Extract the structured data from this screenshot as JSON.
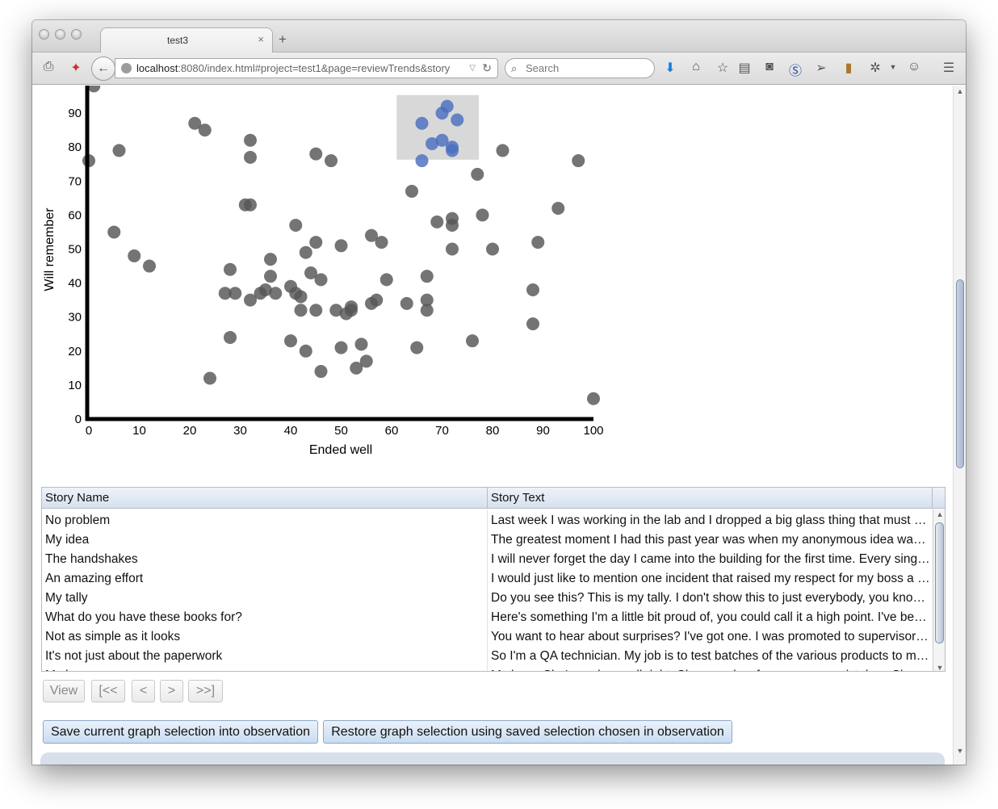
{
  "browser": {
    "tab_title": "test3",
    "tab_close": "×",
    "new_tab": "+",
    "url_host": "localhost",
    "url_rest": ":8080/index.html#project=test1&page=reviewTrends&story",
    "search_placeholder": "Search"
  },
  "chart_data": {
    "type": "scatter",
    "xlabel": "Ended well",
    "ylabel": "Will remember",
    "xlim": [
      0,
      100
    ],
    "ylim": [
      0,
      100
    ],
    "xticks": [
      0,
      10,
      20,
      30,
      40,
      50,
      60,
      70,
      80,
      90,
      100
    ],
    "yticks": [
      0,
      10,
      20,
      30,
      40,
      50,
      60,
      70,
      80,
      90
    ],
    "selection_box": {
      "x": [
        61,
        77.3
      ],
      "y": [
        76.3,
        95.3
      ]
    },
    "colors": {
      "point": "#555555",
      "selected": "#4a6fc0",
      "selection": "#d8d8d8"
    },
    "points": [
      [
        1,
        98
      ],
      [
        0,
        76
      ],
      [
        6,
        79
      ],
      [
        5,
        55
      ],
      [
        9,
        48
      ],
      [
        12,
        45
      ],
      [
        21,
        87
      ],
      [
        23,
        85
      ],
      [
        24,
        12
      ],
      [
        27,
        37
      ],
      [
        28,
        44
      ],
      [
        28,
        24
      ],
      [
        29,
        37
      ],
      [
        31,
        63
      ],
      [
        32,
        63
      ],
      [
        32,
        82
      ],
      [
        32,
        77
      ],
      [
        32,
        35
      ],
      [
        34,
        37
      ],
      [
        35,
        38
      ],
      [
        36,
        47
      ],
      [
        36,
        42
      ],
      [
        37,
        37
      ],
      [
        40,
        39
      ],
      [
        40,
        23
      ],
      [
        41,
        57
      ],
      [
        41,
        37
      ],
      [
        42,
        36
      ],
      [
        42,
        32
      ],
      [
        43,
        49
      ],
      [
        43,
        20
      ],
      [
        44,
        43
      ],
      [
        45,
        78
      ],
      [
        45,
        52
      ],
      [
        45,
        32
      ],
      [
        46,
        41
      ],
      [
        46,
        14
      ],
      [
        48,
        76
      ],
      [
        49,
        32
      ],
      [
        50,
        51
      ],
      [
        50,
        21
      ],
      [
        51,
        31
      ],
      [
        52,
        32
      ],
      [
        52,
        33
      ],
      [
        53,
        15
      ],
      [
        54,
        22
      ],
      [
        55,
        17
      ],
      [
        56,
        54
      ],
      [
        56,
        34
      ],
      [
        57,
        35
      ],
      [
        58,
        52
      ],
      [
        59,
        41
      ],
      [
        63,
        34
      ],
      [
        64,
        67
      ],
      [
        65,
        21
      ],
      [
        67,
        42
      ],
      [
        67,
        35
      ],
      [
        67,
        32
      ],
      [
        69,
        58
      ],
      [
        72,
        59
      ],
      [
        72,
        57
      ],
      [
        72,
        50
      ],
      [
        76,
        23
      ],
      [
        77,
        72
      ],
      [
        78,
        60
      ],
      [
        80,
        50
      ],
      [
        82,
        79
      ],
      [
        88,
        38
      ],
      [
        88,
        28
      ],
      [
        89,
        52
      ],
      [
        93,
        62
      ],
      [
        97,
        76
      ],
      [
        100,
        6
      ]
    ],
    "selected_points": [
      [
        66,
        87
      ],
      [
        66,
        76
      ],
      [
        68,
        81
      ],
      [
        70,
        90
      ],
      [
        70,
        82
      ],
      [
        71,
        92
      ],
      [
        72,
        80
      ],
      [
        72,
        79
      ],
      [
        73,
        88
      ]
    ]
  },
  "table": {
    "headers": [
      "Story Name",
      "Story Text"
    ],
    "rows": [
      {
        "name": "No problem",
        "text": "Last week I was working in the lab and I dropped a big glass thing that must have been worth a lot of money"
      },
      {
        "name": "My idea",
        "text": "The greatest moment I had this past year was when my anonymous idea was picked up by the management team"
      },
      {
        "name": "The handshakes",
        "text": "I will never forget the day I came into the building for the first time. Every single person came over to greet me"
      },
      {
        "name": "An amazing effort",
        "text": "I would just like to mention one incident that raised my respect for my boss a great deal this year"
      },
      {
        "name": "My tally",
        "text": "Do you see this? This is my tally. I don't show this to just everybody, you know, but I think you will understand"
      },
      {
        "name": "What do you have these books for?",
        "text": "Here's something I'm a little bit proud of, you could call it a high point. I've been collecting these books"
      },
      {
        "name": "Not as simple as it looks",
        "text": "You want to hear about surprises? I've got one. I was promoted to supervisor last spring and nobody expected it"
      },
      {
        "name": "It's not just about the paperwork",
        "text": "So I'm a QA technician. My job is to test batches of the various products to make sure they meet our standards"
      },
      {
        "name": "My hero",
        "text": "My hero. She's my hero, all right. She saved us from so many mistakes. She was always there for us when it counted"
      }
    ]
  },
  "pager": {
    "view": "View",
    "first": "[<<",
    "prev": "<",
    "next": ">",
    "last": ">>]"
  },
  "actions": {
    "save": "Save current graph selection into observation",
    "restore": "Restore graph selection using saved selection chosen in observation"
  }
}
